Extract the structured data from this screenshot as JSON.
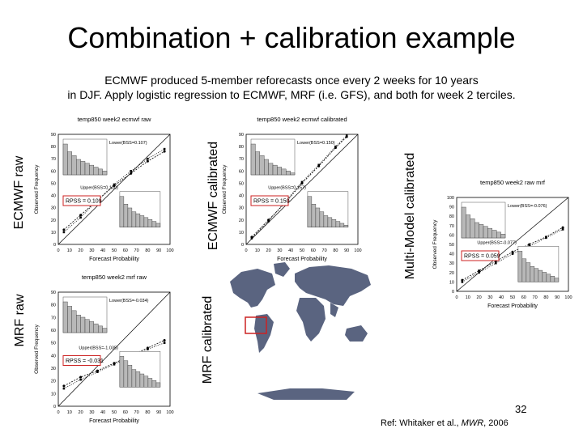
{
  "slide": {
    "title": "Combination + calibration example",
    "subtitle_line1": "ECMWF produced 5-member reforecasts once every 2 weeks for 10 years",
    "subtitle_line2": "in DJF.  Apply logistic regression to ECMWF, MRF (i.e. GFS), and both for week 2 terciles.",
    "page_number": "32",
    "reference_prefix": "Ref: Whitaker et al., ",
    "reference_journal": "MWR",
    "reference_suffix": ", 2006"
  },
  "labels": {
    "ecmwf_raw": "ECMWF raw",
    "ecmwf_calibrated": "ECMWF calibrated",
    "mrf_raw": "MRF raw",
    "mrf_calibrated": "MRF calibrated",
    "multimodel_calibrated": "Multi-Model calibrated"
  },
  "panels": [
    {
      "id": "ecmwf-raw",
      "title": "temp850 week2 ecmwf raw",
      "rpss": "RPSS = 0.109",
      "lower_legend": "Lower(BSS=0.107)",
      "upper_legend": "Upper(BSS=0.100)",
      "xlabel": "Forecast Probability",
      "ylabel": "Observed Frequency",
      "xticks": [
        "0",
        "10",
        "20",
        "30",
        "40",
        "50",
        "60",
        "70",
        "80",
        "90",
        "100"
      ],
      "yticks": [
        "0",
        "10",
        "20",
        "30",
        "40",
        "50",
        "60",
        "70",
        "80",
        "90"
      ],
      "lower_curve": [
        [
          5,
          12
        ],
        [
          20,
          24
        ],
        [
          35,
          36
        ],
        [
          50,
          48
        ],
        [
          65,
          58
        ],
        [
          80,
          68
        ],
        [
          95,
          76
        ]
      ],
      "upper_curve": [
        [
          5,
          10
        ],
        [
          20,
          22
        ],
        [
          35,
          36
        ],
        [
          50,
          49
        ],
        [
          65,
          60
        ],
        [
          80,
          70
        ],
        [
          95,
          78
        ]
      ],
      "hist_lower": [
        8,
        6,
        5,
        4,
        3.5,
        3,
        2.5,
        2,
        1.5,
        1
      ],
      "hist_upper": [
        8,
        6,
        5,
        4,
        3.5,
        3,
        2.5,
        2,
        1.5,
        1
      ]
    },
    {
      "id": "ecmwf-calibrated",
      "title": "temp850 week2 ecmwf calibrated",
      "rpss": "RPSS = 0.150",
      "lower_legend": "Lower(BSS=0.150)",
      "upper_legend": "Upper(BSS=0.157)",
      "xlabel": "Forecast Probability",
      "ylabel": "Observed Frequency",
      "xticks": [
        "0",
        "10",
        "20",
        "30",
        "40",
        "50",
        "60",
        "70",
        "80",
        "90",
        "100"
      ],
      "yticks": [
        "0",
        "10",
        "20",
        "30",
        "40",
        "50",
        "60",
        "70",
        "80",
        "90"
      ],
      "lower_curve": [
        [
          5,
          6
        ],
        [
          20,
          20
        ],
        [
          35,
          34
        ],
        [
          50,
          50
        ],
        [
          65,
          64
        ],
        [
          80,
          79
        ],
        [
          90,
          88
        ]
      ],
      "upper_curve": [
        [
          5,
          5
        ],
        [
          20,
          19
        ],
        [
          35,
          35
        ],
        [
          50,
          51
        ],
        [
          65,
          65
        ],
        [
          80,
          80
        ],
        [
          90,
          89
        ]
      ],
      "hist_lower": [
        8,
        6,
        5,
        4,
        3,
        2.5,
        2,
        1.5,
        1,
        0.5
      ],
      "hist_upper": [
        8,
        6,
        5,
        4,
        3,
        2.5,
        2,
        1.5,
        1,
        0.5
      ]
    },
    {
      "id": "mrf-raw",
      "title": "temp850 week2 mrf raw",
      "rpss": "RPSS = -0.031",
      "lower_legend": "Lower(BSS=-0.034)",
      "upper_legend": "Upper(BSS=-1.035)",
      "xlabel": "Forecast Probability",
      "ylabel": "Observed Frequency",
      "xticks": [
        "0",
        "10",
        "20",
        "30",
        "40",
        "50",
        "60",
        "70",
        "80",
        "90",
        "100"
      ],
      "yticks": [
        "0",
        "10",
        "20",
        "30",
        "40",
        "50",
        "60",
        "70",
        "80",
        "90"
      ],
      "lower_curve": [
        [
          5,
          16
        ],
        [
          20,
          23
        ],
        [
          35,
          28
        ],
        [
          50,
          34
        ],
        [
          65,
          40
        ],
        [
          80,
          46
        ],
        [
          95,
          52
        ]
      ],
      "upper_curve": [
        [
          5,
          14
        ],
        [
          20,
          21
        ],
        [
          35,
          27
        ],
        [
          50,
          33
        ],
        [
          65,
          39
        ],
        [
          80,
          45
        ],
        [
          95,
          50
        ]
      ],
      "hist_lower": [
        7,
        6,
        5,
        4,
        3.5,
        3,
        2.5,
        2,
        1.5,
        1
      ],
      "hist_upper": [
        7,
        6,
        5,
        4,
        3.5,
        3,
        2.5,
        2,
        1.5,
        1
      ]
    },
    {
      "id": "multimodel-calibrated",
      "title": "temp850 week2 raw mrf",
      "rpss": "RPSS = 0.059",
      "lower_legend": "Lower(BSS=-0.076)",
      "upper_legend": "Upper(BSS=-0.077)",
      "xlabel": "Forecast Probability",
      "ylabel": "Observed Frequency",
      "xticks": [
        "0",
        "10",
        "20",
        "30",
        "40",
        "50",
        "60",
        "70",
        "80",
        "90",
        "100"
      ],
      "yticks": [
        "0",
        "10",
        "20",
        "30",
        "40",
        "50",
        "60",
        "70",
        "80",
        "90",
        "100"
      ],
      "lower_curve": [
        [
          5,
          12
        ],
        [
          20,
          22
        ],
        [
          35,
          32
        ],
        [
          50,
          42
        ],
        [
          65,
          50
        ],
        [
          80,
          58
        ],
        [
          95,
          68
        ]
      ],
      "upper_curve": [
        [
          5,
          10
        ],
        [
          20,
          20
        ],
        [
          35,
          30
        ],
        [
          50,
          40
        ],
        [
          65,
          48
        ],
        [
          80,
          57
        ],
        [
          95,
          66
        ]
      ],
      "hist_lower": [
        8,
        6,
        5,
        4,
        3.5,
        3,
        2.5,
        2,
        1.5,
        1
      ],
      "hist_upper": [
        8,
        6,
        5,
        4,
        3.5,
        3,
        2.5,
        2,
        1.5,
        1
      ]
    }
  ],
  "colors": {
    "highlight_box": "#cc2222",
    "map_land": "#5a6480",
    "bar_fill": "#b8b8b8",
    "bar_stroke": "#333333"
  }
}
